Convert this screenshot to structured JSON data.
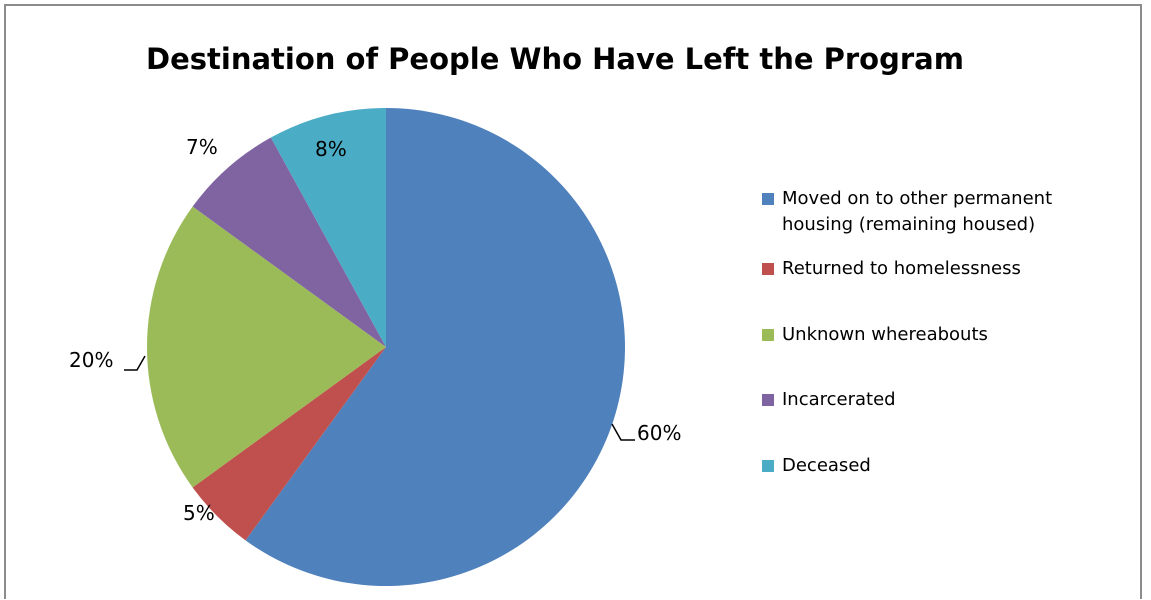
{
  "chart_data": {
    "type": "pie",
    "title": "Destination of People Who Have Left the Program",
    "legend_position": "right",
    "slices": [
      {
        "name": "Moved on to other permanent housing (remaining housed)",
        "value": 60,
        "label": "60%",
        "color": "#4F81BD"
      },
      {
        "name": "Returned to homelessness",
        "value": 5,
        "label": "5%",
        "color": "#C0504D"
      },
      {
        "name": "Unknown whereabouts",
        "value": 20,
        "label": "20%",
        "color": "#9BBB59"
      },
      {
        "name": "Incarcerated",
        "value": 7,
        "label": "7%",
        "color": "#8064A2"
      },
      {
        "name": "Deceased",
        "value": 8,
        "label": "8%",
        "color": "#4BACC6"
      }
    ]
  }
}
